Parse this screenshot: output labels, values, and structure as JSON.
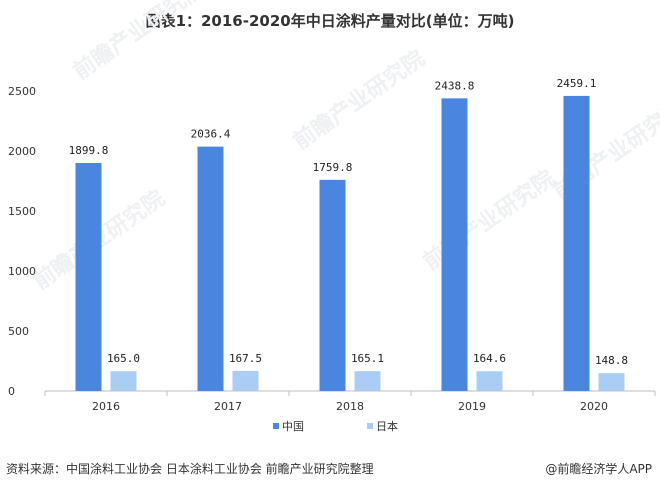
{
  "chart_data": {
    "type": "bar",
    "title": "图表1：2016-2020年中日涂料产量对比(单位：万吨)",
    "categories": [
      "2016",
      "2017",
      "2018",
      "2019",
      "2020"
    ],
    "series": [
      {
        "name": "中国",
        "color": "#4a86e0",
        "values": [
          1899.8,
          2036.4,
          1759.8,
          2438.8,
          2459.1
        ],
        "labels": [
          "1899.8",
          "2036.4",
          "1759.8",
          "2438.8",
          "2459.1"
        ]
      },
      {
        "name": "日本",
        "color": "#a9cdf5",
        "values": [
          165.0,
          167.5,
          165.1,
          164.6,
          148.8
        ],
        "labels": [
          "165.0",
          "167.5",
          "165.1",
          "164.6",
          "148.8"
        ]
      }
    ],
    "ylim": [
      0,
      2500
    ],
    "yticks": [
      "0",
      "500",
      "1000",
      "1500",
      "2000",
      "2500"
    ],
    "grid": false,
    "legend_position": "bottom"
  },
  "footer": {
    "source": "资料来源：中国涂料工业协会 日本涂料工业协会 前瞻产业研究院整理",
    "brand": "@前瞻经济学人APP"
  },
  "watermark": "前瞻产业研究院"
}
